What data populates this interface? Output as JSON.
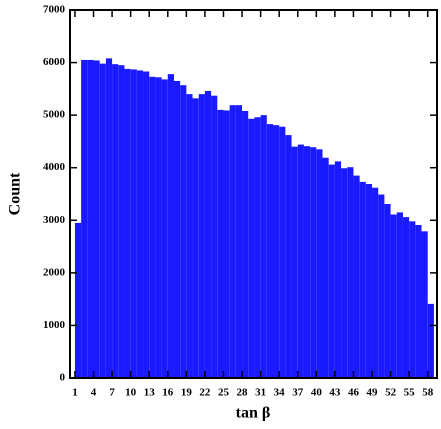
{
  "chart_data": {
    "type": "histogram",
    "xlabel": "tan β",
    "ylabel": "Count",
    "bins": [
      1,
      2,
      3,
      4,
      5,
      6,
      7,
      8,
      9,
      10,
      11,
      12,
      13,
      14,
      15,
      16,
      17,
      18,
      19,
      20,
      21,
      22,
      23,
      24,
      25,
      26,
      27,
      28,
      29,
      30,
      31,
      32,
      33,
      34,
      35,
      36,
      37,
      38,
      39,
      40,
      41,
      42,
      43,
      44,
      45,
      46,
      47,
      48,
      49,
      50,
      51,
      52,
      53,
      54,
      55,
      56,
      57,
      58,
      59
    ],
    "values": [
      2950,
      6050,
      6050,
      6040,
      5980,
      6080,
      5970,
      5950,
      5880,
      5870,
      5850,
      5830,
      5730,
      5720,
      5680,
      5780,
      5650,
      5570,
      5400,
      5320,
      5400,
      5460,
      5370,
      5100,
      5090,
      5190,
      5190,
      5080,
      4930,
      4960,
      5000,
      4830,
      4810,
      4780,
      4620,
      4400,
      4440,
      4410,
      4390,
      4350,
      4190,
      4060,
      4120,
      3990,
      4010,
      3850,
      3730,
      3690,
      3620,
      3490,
      3310,
      3110,
      3150,
      3060,
      2980,
      2910,
      2790,
      1410
    ],
    "color": "#1a1aff",
    "xlim": [
      0.2,
      59.5
    ],
    "ylim": [
      0,
      7000
    ],
    "xticks": [
      1,
      4,
      7,
      10,
      13,
      16,
      19,
      22,
      25,
      28,
      31,
      34,
      37,
      40,
      43,
      46,
      49,
      52,
      55,
      58
    ],
    "yticks": [
      0,
      1000,
      2000,
      3000,
      4000,
      5000,
      6000,
      7000
    ]
  }
}
